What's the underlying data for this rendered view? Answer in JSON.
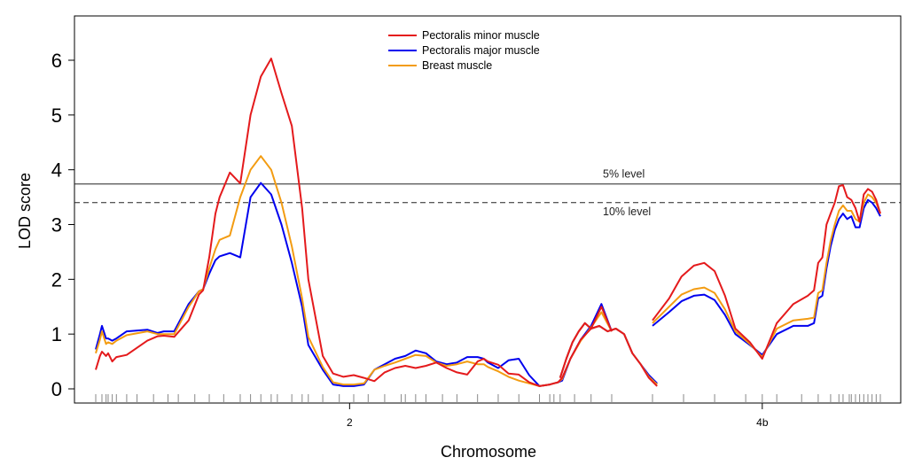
{
  "chart_data": {
    "type": "line",
    "title": "",
    "xlabel": "Chromosome",
    "ylabel": "LOD score",
    "ylim": [
      0,
      6.5
    ],
    "yticks": [
      0,
      1,
      2,
      3,
      4,
      5,
      6
    ],
    "grid": false,
    "legend_position": "top-center",
    "chromosomes": [
      {
        "label": "2",
        "range_cM": [
          0,
          250
        ],
        "label_at_cM": 123,
        "markers_cM": [
          0,
          3,
          5,
          6,
          8,
          10,
          15,
          20,
          28,
          35,
          40,
          48,
          55,
          62,
          70,
          75,
          80,
          85,
          88,
          95,
          100,
          103,
          110,
          118,
          125,
          132,
          140,
          148,
          150,
          155,
          160,
          168,
          175,
          185,
          195,
          205,
          215,
          220,
          222,
          225,
          232,
          240,
          250
        ]
      },
      {
        "label": "4b",
        "range_cM": [
          0,
          110
        ],
        "label_at_cM": 53,
        "markers_cM": [
          0,
          15,
          30,
          45,
          53,
          60,
          72,
          80,
          86,
          90,
          92,
          95,
          96,
          98,
          100,
          102,
          104,
          106,
          108,
          110
        ]
      }
    ],
    "series": [
      {
        "name": "Pectoralis minor muscle",
        "color": "#e41a1c",
        "chromosomes": {
          "2": {
            "x": [
              0,
              2,
              3,
              5,
              6,
              8,
              10,
              15,
              25,
              30,
              33,
              38,
              45,
              50,
              52,
              55,
              58,
              60,
              65,
              70,
              75,
              80,
              85,
              90,
              95,
              100,
              103,
              110,
              115,
              120,
              125,
              130,
              135,
              140,
              145,
              150,
              155,
              160,
              165,
              170,
              175,
              180,
              185,
              188,
              190,
              195,
              200,
              205,
              210,
              215,
              220,
              222,
              224,
              226,
              230,
              235,
              240,
              245,
              250
            ],
            "y": [
              0.35,
              0.6,
              0.68,
              0.6,
              0.65,
              0.5,
              0.58,
              0.62,
              0.88,
              0.96,
              0.97,
              0.95,
              1.25,
              1.72,
              1.8,
              2.4,
              3.2,
              3.5,
              3.95,
              3.75,
              5.0,
              5.7,
              6.03,
              5.4,
              4.8,
              3.3,
              2.0,
              0.6,
              0.28,
              0.22,
              0.25,
              0.2,
              0.14,
              0.3,
              0.38,
              0.42,
              0.38,
              0.42,
              0.48,
              0.38,
              0.3,
              0.26,
              0.5,
              0.55,
              0.5,
              0.44,
              0.28,
              0.26,
              0.12,
              0.05,
              0.08,
              0.1,
              0.12,
              0.2,
              0.55,
              0.9,
              1.1,
              1.5,
              1.05
            ]
          },
          "2b": {
            "x": [
              225,
              228,
              231,
              234,
              237,
              240,
              244,
              248,
              252,
              256,
              260,
              264,
              268,
              272
            ],
            "y": [
              0.2,
              0.55,
              0.85,
              1.05,
              1.2,
              1.1,
              1.15,
              1.05,
              1.1,
              1.0,
              0.65,
              0.45,
              0.2,
              0.05
            ]
          },
          "4b": {
            "x": [
              0,
              8,
              14,
              20,
              25,
              30,
              35,
              40,
              47,
              53,
              60,
              68,
              75,
              78,
              80,
              82,
              84,
              86,
              88,
              90,
              92,
              94,
              96,
              98,
              100,
              102,
              104,
              106,
              108,
              110
            ],
            "y": [
              1.25,
              1.65,
              2.05,
              2.25,
              2.3,
              2.15,
              1.7,
              1.1,
              0.85,
              0.55,
              1.2,
              1.55,
              1.7,
              1.8,
              2.3,
              2.4,
              3.0,
              3.2,
              3.4,
              3.7,
              3.72,
              3.5,
              3.45,
              3.3,
              3.05,
              3.55,
              3.65,
              3.6,
              3.45,
              3.2
            ]
          }
        }
      },
      {
        "name": "Pectoralis major muscle",
        "color": "#0000ee",
        "chromosomes": {
          "2": {
            "x": [
              0,
              2,
              3,
              5,
              6,
              8,
              10,
              15,
              25,
              30,
              33,
              38,
              45,
              50,
              52,
              55,
              58,
              60,
              65,
              70,
              75,
              80,
              85,
              90,
              95,
              100,
              103,
              110,
              115,
              120,
              125,
              130,
              135,
              140,
              145,
              150,
              155,
              160,
              165,
              170,
              175,
              180,
              185,
              188,
              190,
              195,
              200,
              205,
              210,
              215,
              220,
              222,
              224,
              226,
              230,
              235,
              240,
              245,
              250
            ],
            "y": [
              0.72,
              1.0,
              1.15,
              0.92,
              0.92,
              0.88,
              0.92,
              1.05,
              1.08,
              1.02,
              1.05,
              1.05,
              1.55,
              1.78,
              1.82,
              2.1,
              2.35,
              2.42,
              2.48,
              2.4,
              3.5,
              3.76,
              3.55,
              3.0,
              2.3,
              1.5,
              0.8,
              0.35,
              0.08,
              0.05,
              0.05,
              0.08,
              0.35,
              0.45,
              0.55,
              0.6,
              0.7,
              0.65,
              0.5,
              0.45,
              0.48,
              0.58,
              0.58,
              0.55,
              0.48,
              0.38,
              0.52,
              0.55,
              0.25,
              0.05,
              0.08,
              0.1,
              0.12,
              0.15,
              0.55,
              0.9,
              1.15,
              1.55,
              1.05
            ]
          },
          "2b": {
            "x": [
              225,
              228,
              231,
              234,
              237,
              240,
              244,
              248,
              252,
              256,
              260,
              264,
              268,
              272
            ],
            "y": [
              0.2,
              0.55,
              0.85,
              1.05,
              1.2,
              1.1,
              1.15,
              1.05,
              1.1,
              1.0,
              0.65,
              0.45,
              0.25,
              0.1
            ]
          },
          "4b": {
            "x": [
              0,
              8,
              14,
              20,
              25,
              30,
              35,
              40,
              47,
              53,
              60,
              68,
              75,
              78,
              80,
              82,
              84,
              86,
              88,
              90,
              92,
              94,
              96,
              98,
              100,
              102,
              104,
              106,
              108,
              110
            ],
            "y": [
              1.15,
              1.4,
              1.6,
              1.7,
              1.72,
              1.62,
              1.35,
              1.0,
              0.8,
              0.62,
              1.0,
              1.15,
              1.15,
              1.2,
              1.65,
              1.7,
              2.2,
              2.6,
              2.9,
              3.1,
              3.2,
              3.1,
              3.15,
              2.95,
              2.95,
              3.3,
              3.45,
              3.4,
              3.3,
              3.15
            ]
          }
        }
      },
      {
        "name": "Breast muscle",
        "color": "#f39c12",
        "chromosomes": {
          "2": {
            "x": [
              0,
              2,
              3,
              5,
              6,
              8,
              10,
              15,
              25,
              30,
              33,
              38,
              45,
              50,
              52,
              55,
              58,
              60,
              65,
              70,
              75,
              80,
              85,
              90,
              95,
              100,
              103,
              110,
              115,
              120,
              125,
              130,
              135,
              140,
              145,
              150,
              155,
              160,
              165,
              170,
              175,
              180,
              185,
              188,
              190,
              195,
              200,
              205,
              210,
              215,
              220,
              222,
              224,
              226,
              230,
              235,
              240,
              245,
              250
            ],
            "y": [
              0.65,
              0.9,
              1.05,
              0.82,
              0.85,
              0.82,
              0.88,
              0.98,
              1.05,
              1.0,
              1.0,
              1.0,
              1.5,
              1.78,
              1.82,
              2.2,
              2.55,
              2.72,
              2.8,
              3.5,
              4.0,
              4.25,
              4.0,
              3.4,
              2.6,
              1.65,
              0.95,
              0.4,
              0.12,
              0.08,
              0.08,
              0.1,
              0.35,
              0.42,
              0.48,
              0.55,
              0.62,
              0.6,
              0.48,
              0.42,
              0.45,
              0.5,
              0.45,
              0.45,
              0.4,
              0.32,
              0.22,
              0.15,
              0.1,
              0.05,
              0.08,
              0.1,
              0.12,
              0.18,
              0.55,
              0.88,
              1.12,
              1.4,
              1.05
            ]
          },
          "2b": {
            "x": [
              225,
              228,
              231,
              234,
              237,
              240,
              244,
              248,
              252,
              256,
              260,
              264,
              268,
              272
            ],
            "y": [
              0.2,
              0.55,
              0.85,
              1.05,
              1.2,
              1.1,
              1.15,
              1.05,
              1.1,
              1.0,
              0.65,
              0.45,
              0.22,
              0.08
            ]
          },
          "4b": {
            "x": [
              0,
              8,
              14,
              20,
              25,
              30,
              35,
              40,
              47,
              53,
              60,
              68,
              75,
              78,
              80,
              82,
              84,
              86,
              88,
              90,
              92,
              94,
              96,
              98,
              100,
              102,
              104,
              106,
              108,
              110
            ],
            "y": [
              1.2,
              1.5,
              1.72,
              1.82,
              1.85,
              1.75,
              1.45,
              1.05,
              0.82,
              0.58,
              1.1,
              1.25,
              1.28,
              1.3,
              1.75,
              1.8,
              2.3,
              2.7,
              3.0,
              3.25,
              3.35,
              3.25,
              3.25,
              3.1,
              3.05,
              3.4,
              3.55,
              3.5,
              3.4,
              3.2
            ]
          }
        }
      }
    ],
    "thresholds": [
      {
        "label": "5% level",
        "value": 3.74,
        "style": "solid"
      },
      {
        "label": "10% level",
        "value": 3.4,
        "style": "dashed"
      }
    ]
  }
}
